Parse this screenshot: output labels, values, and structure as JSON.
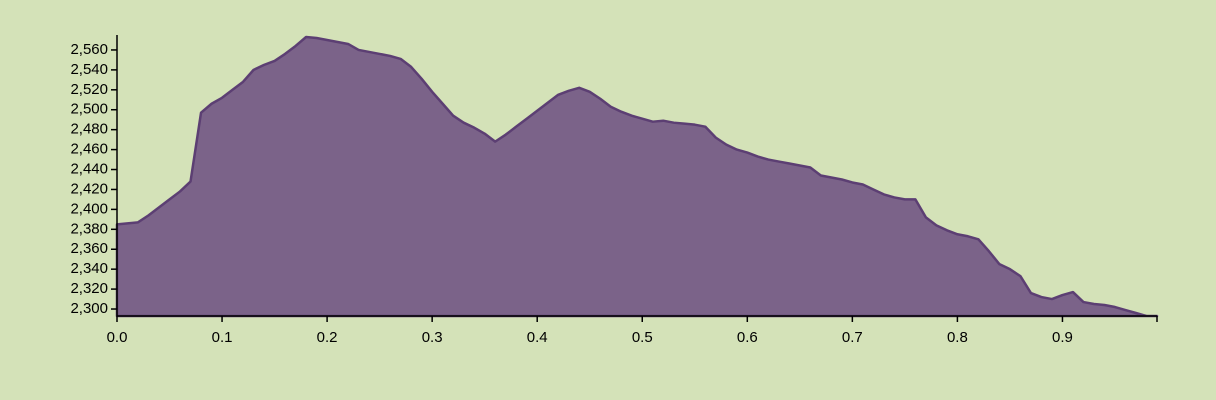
{
  "chart_data": {
    "type": "area",
    "title": "",
    "xlabel": "",
    "ylabel": "",
    "xlim": [
      0,
      0.99
    ],
    "ylim": [
      2293,
      2575
    ],
    "grid": false,
    "x_ticks": [
      {
        "value": 0.0,
        "label": "0.0"
      },
      {
        "value": 0.1,
        "label": "0.1"
      },
      {
        "value": 0.2,
        "label": "0.2"
      },
      {
        "value": 0.3,
        "label": "0.3"
      },
      {
        "value": 0.4,
        "label": "0.4"
      },
      {
        "value": 0.5,
        "label": "0.5"
      },
      {
        "value": 0.6,
        "label": "0.6"
      },
      {
        "value": 0.7,
        "label": "0.7"
      },
      {
        "value": 0.8,
        "label": "0.8"
      },
      {
        "value": 0.9,
        "label": "0.9"
      }
    ],
    "y_ticks": [
      {
        "value": 2300,
        "label": "2,300"
      },
      {
        "value": 2320,
        "label": "2,320"
      },
      {
        "value": 2340,
        "label": "2,340"
      },
      {
        "value": 2360,
        "label": "2,360"
      },
      {
        "value": 2380,
        "label": "2,380"
      },
      {
        "value": 2400,
        "label": "2,400"
      },
      {
        "value": 2420,
        "label": "2,420"
      },
      {
        "value": 2440,
        "label": "2,440"
      },
      {
        "value": 2460,
        "label": "2,460"
      },
      {
        "value": 2480,
        "label": "2,480"
      },
      {
        "value": 2500,
        "label": "2,500"
      },
      {
        "value": 2520,
        "label": "2,520"
      },
      {
        "value": 2540,
        "label": "2,540"
      },
      {
        "value": 2560,
        "label": "2,560"
      }
    ],
    "x": [
      0.0,
      0.01,
      0.02,
      0.03,
      0.04,
      0.05,
      0.06,
      0.07,
      0.08,
      0.09,
      0.1,
      0.11,
      0.12,
      0.13,
      0.14,
      0.15,
      0.16,
      0.17,
      0.18,
      0.19,
      0.2,
      0.21,
      0.22,
      0.23,
      0.24,
      0.25,
      0.26,
      0.27,
      0.28,
      0.29,
      0.3,
      0.31,
      0.32,
      0.33,
      0.34,
      0.35,
      0.36,
      0.37,
      0.38,
      0.39,
      0.4,
      0.41,
      0.42,
      0.43,
      0.44,
      0.45,
      0.46,
      0.47,
      0.48,
      0.49,
      0.5,
      0.51,
      0.52,
      0.53,
      0.54,
      0.55,
      0.56,
      0.57,
      0.58,
      0.59,
      0.6,
      0.61,
      0.62,
      0.63,
      0.64,
      0.65,
      0.66,
      0.67,
      0.68,
      0.69,
      0.7,
      0.71,
      0.72,
      0.73,
      0.74,
      0.75,
      0.76,
      0.77,
      0.78,
      0.79,
      0.8,
      0.81,
      0.82,
      0.83,
      0.84,
      0.85,
      0.86,
      0.87,
      0.88,
      0.89,
      0.9,
      0.91,
      0.92,
      0.93,
      0.94,
      0.95,
      0.96,
      0.97,
      0.98,
      0.99
    ],
    "series": [
      {
        "values": [
          2385,
          2386,
          2387,
          2394,
          2402,
          2410,
          2418,
          2428,
          2497,
          2506,
          2512,
          2520,
          2528,
          2540,
          2545,
          2549,
          2556,
          2564,
          2573,
          2572,
          2570,
          2568,
          2566,
          2560,
          2558,
          2556,
          2554,
          2551,
          2543,
          2531,
          2518,
          2506,
          2494,
          2487,
          2482,
          2476,
          2468,
          2475,
          2483,
          2491,
          2499,
          2507,
          2515,
          2519,
          2522,
          2518,
          2511,
          2503,
          2498,
          2494,
          2491,
          2488,
          2489,
          2487,
          2486,
          2485,
          2483,
          2472,
          2465,
          2460,
          2457,
          2453,
          2450,
          2448,
          2446,
          2444,
          2442,
          2434,
          2432,
          2430,
          2427,
          2425,
          2420,
          2415,
          2412,
          2410,
          2410,
          2392,
          2384,
          2379,
          2375,
          2373,
          2370,
          2358,
          2345,
          2340,
          2333,
          2316,
          2312,
          2310,
          2314,
          2317,
          2307,
          2305,
          2304,
          2302,
          2299,
          2296,
          2293,
          2293
        ]
      }
    ]
  }
}
